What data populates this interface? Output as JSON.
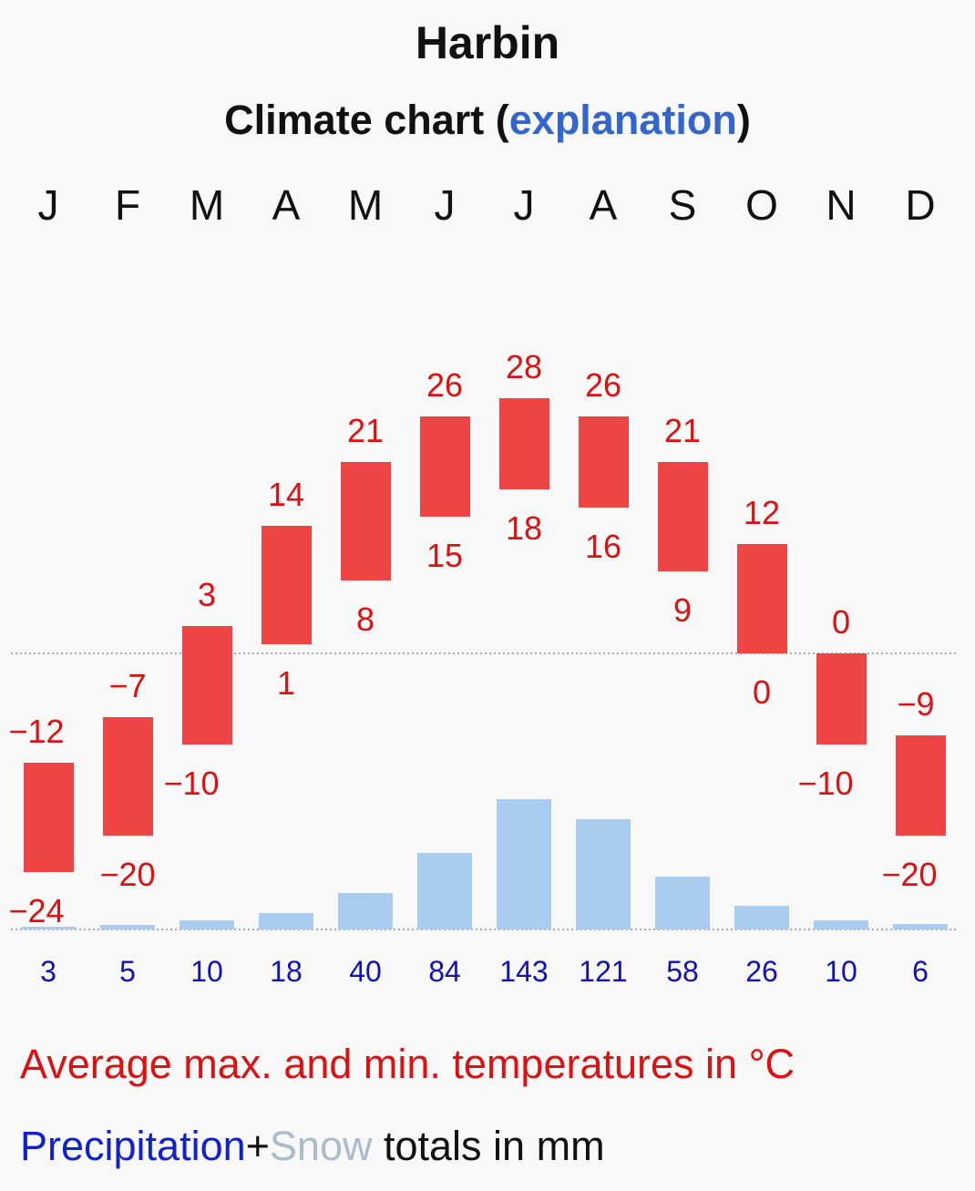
{
  "title": "Harbin",
  "subtitle": {
    "prefix": "Climate chart (",
    "link": "explanation",
    "suffix": ")"
  },
  "colors": {
    "temp": "#ee4444",
    "temp_label": "#dd1111",
    "precip_bar": "#aaccee",
    "precip_label": "#1111bb",
    "precip_legend": "#1122cc",
    "snow_legend": "#aabbcc",
    "text": "#111111",
    "gridline": "#aaaaaa"
  },
  "legend": {
    "temperature": "Average max. and min. temperatures in °C",
    "precipitation": "Precipitation",
    "plus": "+",
    "snow": "Snow",
    "totals": " totals in mm"
  },
  "chart_data": {
    "type": "bar",
    "title": "Harbin",
    "subtitle": "Climate chart (explanation)",
    "categories": [
      "J",
      "F",
      "M",
      "A",
      "M",
      "J",
      "J",
      "A",
      "S",
      "O",
      "N",
      "D"
    ],
    "series": [
      {
        "name": "Average max. temperature (°C)",
        "values": [
          -12,
          -7,
          3,
          14,
          21,
          26,
          28,
          26,
          21,
          12,
          0,
          -9
        ]
      },
      {
        "name": "Average min. temperature (°C)",
        "values": [
          -24,
          -20,
          -10,
          1,
          8,
          15,
          18,
          16,
          9,
          0,
          -10,
          -20
        ]
      },
      {
        "name": "Precipitation (mm)",
        "values": [
          3,
          5,
          10,
          18,
          40,
          84,
          143,
          121,
          58,
          26,
          10,
          6
        ]
      }
    ],
    "temp_labels": {
      "max": [
        "−12",
        "−7",
        "3",
        "14",
        "21",
        "26",
        "28",
        "26",
        "21",
        "12",
        "0",
        "−9"
      ],
      "min": [
        "−24",
        "−20",
        "−10",
        "1",
        "8",
        "15",
        "18",
        "16",
        "9",
        "0",
        "−10",
        "−20"
      ]
    },
    "precip_labels": [
      "3",
      "5",
      "10",
      "18",
      "40",
      "84",
      "143",
      "121",
      "58",
      "26",
      "10",
      "6"
    ],
    "temp_range": [
      -30,
      35
    ],
    "precip_range": [
      0,
      300
    ],
    "reference_lines": [
      "0 °C",
      "0 mm"
    ],
    "xlabel": "",
    "ylabel": ""
  }
}
